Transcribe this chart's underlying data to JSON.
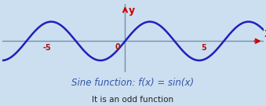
{
  "xlim": [
    -7.8,
    8.8
  ],
  "ylim": [
    -1.6,
    1.9
  ],
  "bg_color": "#ccdff0",
  "plot_bg_color": "#ccdff0",
  "sine_color": "#2020bb",
  "axis_line_color": "#7090b0",
  "arrow_color": "#cc0000",
  "grid_color": "#a8c8e0",
  "tick_label_color": "#aa1111",
  "x_ticks": [
    -5,
    5
  ],
  "x_tick_labels": [
    "-5",
    "5"
  ],
  "origin_label": "0",
  "xlabel": "X",
  "ylabel": "y",
  "title_text": "Sine function: f(x) = sin(x)",
  "title_color": "#3355aa",
  "subtitle_text": "It is an odd function",
  "subtitle_color": "#222222",
  "title_fontsize": 8.5,
  "subtitle_fontsize": 7.5,
  "sine_linewidth": 1.8
}
